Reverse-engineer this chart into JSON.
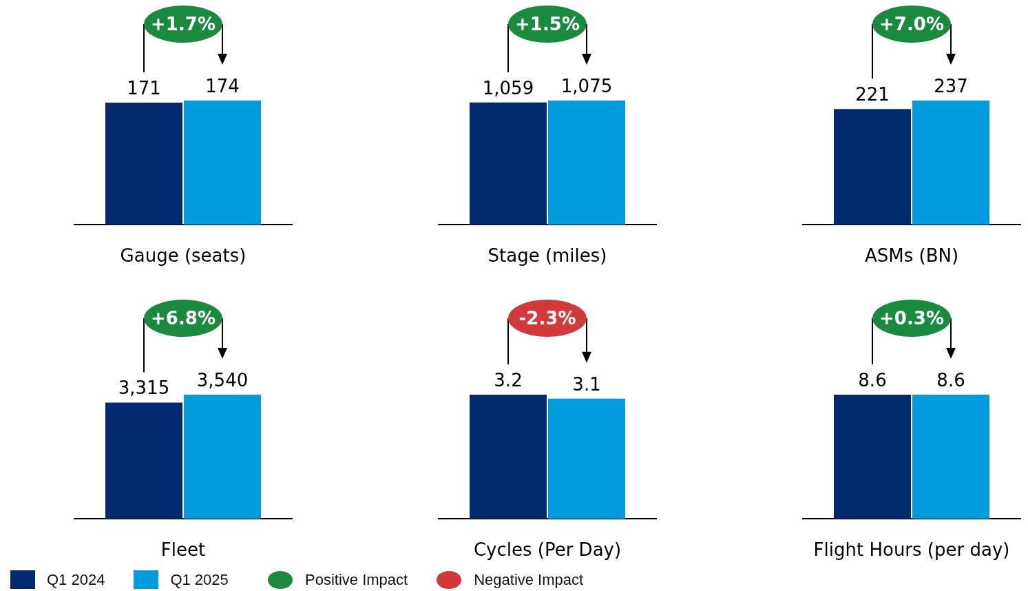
{
  "chart_data": [
    {
      "type": "bar",
      "xlabel": "Gauge (seats)",
      "categories": [
        null
      ],
      "legend": "bottom",
      "annotations": [
        "+1.7%"
      ],
      "series": [
        {
          "name": "Q1 2024",
          "color": "#012a6f",
          "values": [
            171
          ],
          "value_labels": [
            "171"
          ]
        },
        {
          "name": "Q1 2025",
          "color": "#009ade",
          "values": [
            174
          ],
          "value_labels": [
            "174"
          ]
        }
      ]
    },
    {
      "type": "bar",
      "xlabel": "Stage (miles)",
      "categories": [
        null
      ],
      "annotations": [
        "+1.5%"
      ],
      "series": [
        {
          "color": "#012a6f",
          "values": [
            1059
          ],
          "value_labels": [
            "1,059"
          ]
        },
        {
          "color": "#009ade",
          "values": [
            1075
          ],
          "value_labels": [
            "1,075"
          ]
        }
      ]
    },
    {
      "type": "bar",
      "xlabel": "ASMs (BN)",
      "categories": [
        null
      ],
      "annotations": [
        "+7.0%"
      ],
      "series": [
        {
          "color": "#012a6f",
          "values": [
            221
          ],
          "value_labels": [
            "221"
          ]
        },
        {
          "color": "#009ade",
          "values": [
            237
          ],
          "value_labels": [
            "237"
          ]
        }
      ]
    },
    {
      "type": "bar",
      "xlabel": "Fleet",
      "categories": [
        null
      ],
      "annotations": [
        "+6.8%"
      ],
      "series": [
        {
          "color": "#012a6f",
          "values": [
            3315
          ],
          "value_labels": [
            "3,315"
          ]
        },
        {
          "color": "#009ade",
          "values": [
            3540
          ],
          "value_labels": [
            "3,540"
          ]
        }
      ]
    },
    {
      "type": "bar",
      "xlabel": "Cycles (Per Day)",
      "categories": [
        null
      ],
      "annotations": [
        "-2.3%"
      ],
      "series": [
        {
          "color": "#012a6f",
          "values": [
            3.2
          ],
          "value_labels": [
            "3.2"
          ]
        },
        {
          "color": "#009ade",
          "values": [
            3.1
          ],
          "value_labels": [
            "3.1"
          ]
        }
      ]
    },
    {
      "type": "bar",
      "xlabel": "Flight Hours (per day)",
      "categories": [
        null
      ],
      "annotations": [
        "+0.3%"
      ],
      "series": [
        {
          "color": "#012a6f",
          "values": [
            8.6
          ],
          "value_labels": [
            "8.6"
          ]
        },
        {
          "color": "#009ade",
          "values": [
            8.6
          ],
          "value_labels": [
            "8.6"
          ]
        }
      ]
    },
    {
      "type": "other",
      "series": [
        {
          "name": "Positive Impact",
          "color": "#1a8a3e"
        },
        {
          "name": "Negative Impact",
          "color": "#d1393b"
        }
      ]
    }
  ]
}
